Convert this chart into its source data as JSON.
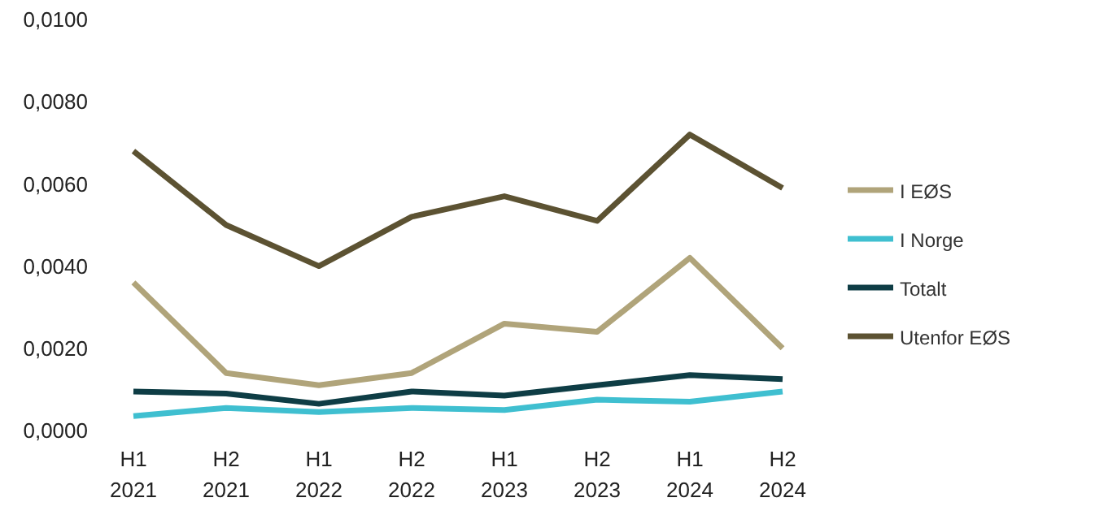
{
  "chart_data": {
    "type": "line",
    "categories": [
      "H1\n2021",
      "H2\n2021",
      "H1\n2022",
      "H2\n2022",
      "H1\n2023",
      "H2\n2023",
      "H1\n2024",
      "H2\n2024"
    ],
    "series": [
      {
        "name": "I Norge",
        "color": "#3fbfd0",
        "values": [
          0.00035,
          0.00055,
          0.00045,
          0.00055,
          0.0005,
          0.00075,
          0.0007,
          0.00095
        ]
      },
      {
        "name": "I EØS",
        "color": "#b0a47a",
        "values": [
          0.0036,
          0.0014,
          0.0011,
          0.0014,
          0.0026,
          0.0024,
          0.0042,
          0.002
        ]
      },
      {
        "name": "Utenfor EØS",
        "color": "#5c5232",
        "values": [
          0.0068,
          0.005,
          0.004,
          0.0052,
          0.0057,
          0.0051,
          0.0072,
          0.0059
        ]
      },
      {
        "name": "Totalt",
        "color": "#0e3d45",
        "values": [
          0.00095,
          0.0009,
          0.00065,
          0.00095,
          0.00085,
          0.0011,
          0.00135,
          0.00125
        ]
      }
    ],
    "ylim": [
      0,
      0.01
    ],
    "yticks": [
      {
        "value": 0,
        "label": "0,0000"
      },
      {
        "value": 0.002,
        "label": "0,0020"
      },
      {
        "value": 0.004,
        "label": "0,0040"
      },
      {
        "value": 0.006,
        "label": "0,0060"
      },
      {
        "value": 0.008,
        "label": "0,0080"
      },
      {
        "value": 0.01,
        "label": "0,0100"
      }
    ],
    "grid": false,
    "legend": "right",
    "marker": "none",
    "line_style": "solid"
  }
}
